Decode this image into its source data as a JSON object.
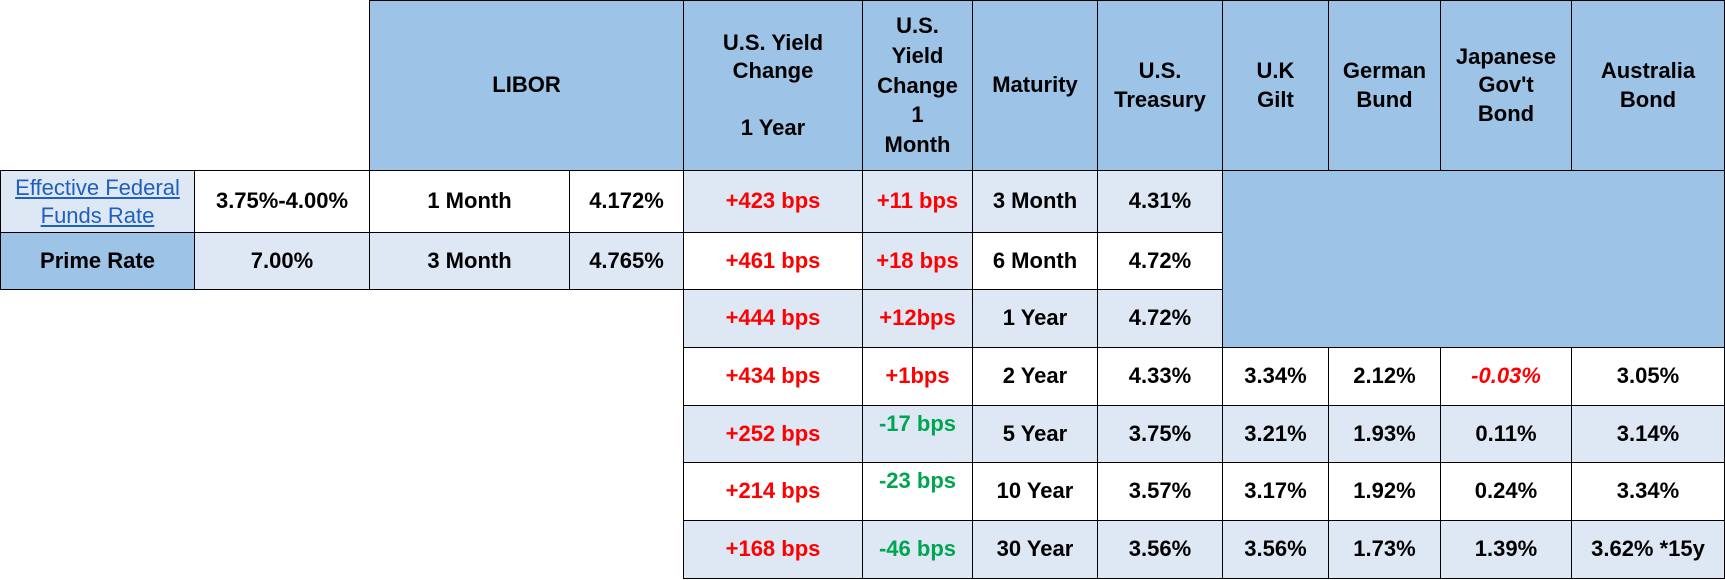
{
  "colors": {
    "header": "#9dc3e6",
    "light_row": "#dde8f4",
    "increase": "#ff0000",
    "decrease": "#00a550",
    "link": "#1f5fbf"
  },
  "headers": {
    "libor": "LIBOR",
    "yield_change_1y_line1": "U.S. Yield",
    "yield_change_1y_line2": "Change",
    "yield_change_1y_line3": "1 Year",
    "yield_change_1m_line1": "U.S.",
    "yield_change_1m_line2": "Yield",
    "yield_change_1m_line3": "Change",
    "yield_change_1m_line4": "1",
    "yield_change_1m_line5": "Month",
    "maturity": "Maturity",
    "us_treasury_line1": "U.S.",
    "us_treasury_line2": "Treasury",
    "uk_gilt_line1": "U.K",
    "uk_gilt_line2": "Gilt",
    "german_bund_line1": "German",
    "german_bund_line2": "Bund",
    "japanese_line1": "Japanese",
    "japanese_line2": "Gov't",
    "japanese_line3": "Bond",
    "australia_line1": "Australia",
    "australia_line2": "Bond"
  },
  "rates": {
    "fed_funds_label_line1": "Effective Federal",
    "fed_funds_label_line2": "Funds Rate",
    "fed_funds_value": "3.75%-4.00%",
    "prime_label": "Prime Rate",
    "prime_value": "7.00%"
  },
  "libor": [
    {
      "term": "1 Month",
      "rate": "4.172%"
    },
    {
      "term": "3 Month",
      "rate": "4.765%"
    }
  ],
  "rows": [
    {
      "chg1y": "+423 bps",
      "chg1m": "+11 bps",
      "maturity": "3 Month",
      "us": "4.31%"
    },
    {
      "chg1y": "+461 bps",
      "chg1m": "+18 bps",
      "maturity": "6 Month",
      "us": "4.72%"
    },
    {
      "chg1y": "+444 bps",
      "chg1m": "+12bps",
      "maturity": "1 Year",
      "us": "4.72%"
    },
    {
      "chg1y": "+434 bps",
      "chg1m": "+1bps",
      "maturity": "2 Year",
      "us": "4.33%",
      "uk": "3.34%",
      "de": "2.12%",
      "jp": "-0.03%",
      "au": "3.05%"
    },
    {
      "chg1y": "+252 bps",
      "chg1m": "-17 bps",
      "maturity": "5 Year",
      "us": "3.75%",
      "uk": "3.21%",
      "de": "1.93%",
      "jp": "0.11%",
      "au": "3.14%"
    },
    {
      "chg1y": "+214 bps",
      "chg1m": "-23 bps",
      "maturity": "10 Year",
      "us": "3.57%",
      "uk": "3.17%",
      "de": "1.92%",
      "jp": "0.24%",
      "au": "3.34%"
    },
    {
      "chg1y": "+168 bps",
      "chg1m": "-46 bps",
      "maturity": "30 Year",
      "us": "3.56%",
      "uk": "3.56%",
      "de": "1.73%",
      "jp": "1.39%",
      "au": "3.62% *15y"
    }
  ]
}
